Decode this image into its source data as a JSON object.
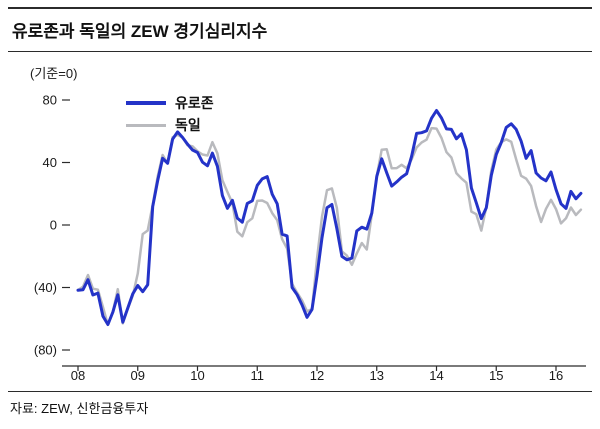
{
  "header": {
    "title": "유로존과 독일의 ZEW 경기심리지수"
  },
  "axis_note": "(기준=0)",
  "source": "자료: ZEW, 신한금융투자",
  "legend": [
    {
      "label": "유로존",
      "color": "#2433c8"
    },
    {
      "label": "독일",
      "color": "#b9babe"
    }
  ],
  "chart_data": {
    "type": "line",
    "title": "유로존과 독일의 ZEW 경기심리지수",
    "x_unit": "monthly",
    "x_start": "2008-01",
    "x_tick_labels": [
      "08",
      "09",
      "10",
      "11",
      "12",
      "13",
      "14",
      "15",
      "16"
    ],
    "y_ticks": [
      80,
      40,
      0,
      -40,
      -80
    ],
    "y_tick_labels": [
      "80",
      "40",
      "0",
      "(40)",
      "(80)"
    ],
    "ylim": [
      -90,
      88
    ],
    "grid": false,
    "legend_position": "top-left-inside",
    "series": [
      {
        "name": "유로존",
        "color": "#2433c8",
        "width": 3,
        "values": [
          -41.7,
          -41.4,
          -35.0,
          -44.8,
          -43.6,
          -58.3,
          -63.7,
          -55.7,
          -44.7,
          -62.2,
          -53.1,
          -44.0,
          -38.7,
          -42.7,
          -38.3,
          11.8,
          28.5,
          42.7,
          39.5,
          54.9,
          59.6,
          56.0,
          51.8,
          48.0,
          46.4,
          40.2,
          37.9,
          46.0,
          37.6,
          18.8,
          10.7,
          15.8,
          4.4,
          1.8,
          13.8,
          15.5,
          25.4,
          29.5,
          31.0,
          19.7,
          13.6,
          -5.9,
          -7.0,
          -40.0,
          -44.6,
          -51.2,
          -59.1,
          -54.1,
          -32.5,
          -8.1,
          11.0,
          13.1,
          -2.4,
          -20.1,
          -22.3,
          -21.2,
          -3.8,
          -1.4,
          -2.6,
          7.6,
          31.2,
          42.4,
          33.4,
          24.9,
          27.6,
          30.6,
          32.8,
          44.0,
          58.6,
          59.1,
          60.2,
          68.3,
          73.3,
          68.5,
          61.5,
          61.2,
          55.2,
          58.4,
          48.1,
          23.7,
          14.2,
          4.1,
          11.0,
          31.8,
          45.2,
          52.7,
          62.4,
          64.8,
          61.2,
          53.7,
          42.7,
          47.6,
          33.3,
          30.1,
          28.3,
          33.9,
          22.7,
          13.6,
          10.6,
          21.5,
          16.8,
          20.2
        ]
      },
      {
        "name": "독일",
        "color": "#b9babe",
        "width": 2.5,
        "values": [
          -41.6,
          -39.5,
          -32.0,
          -40.7,
          -41.4,
          -52.4,
          -63.9,
          -55.5,
          -41.1,
          -63.0,
          -53.5,
          -45.2,
          -31.0,
          -5.8,
          -3.5,
          13.0,
          31.1,
          44.8,
          39.5,
          56.1,
          57.7,
          56.0,
          51.1,
          50.4,
          47.2,
          45.1,
          44.5,
          53.0,
          45.8,
          28.7,
          21.2,
          14.0,
          -4.3,
          -7.2,
          1.8,
          4.3,
          15.4,
          15.7,
          14.1,
          7.6,
          3.1,
          -9.0,
          -15.1,
          -37.6,
          -43.3,
          -48.3,
          -55.2,
          -53.8,
          -21.6,
          5.4,
          22.3,
          23.4,
          10.8,
          -16.9,
          -19.6,
          -25.5,
          -18.2,
          -11.5,
          -15.7,
          6.9,
          31.5,
          48.2,
          48.5,
          36.3,
          36.4,
          38.5,
          36.3,
          42.0,
          49.6,
          52.8,
          54.6,
          62.0,
          61.7,
          55.7,
          46.6,
          43.2,
          33.1,
          29.8,
          27.1,
          8.6,
          6.9,
          -3.6,
          11.5,
          34.9,
          48.4,
          53.0,
          54.8,
          53.3,
          41.9,
          31.5,
          29.7,
          25.0,
          12.1,
          1.9,
          10.4,
          16.1,
          10.2,
          1.0,
          4.3,
          11.2,
          6.4,
          9.8
        ]
      }
    ]
  }
}
